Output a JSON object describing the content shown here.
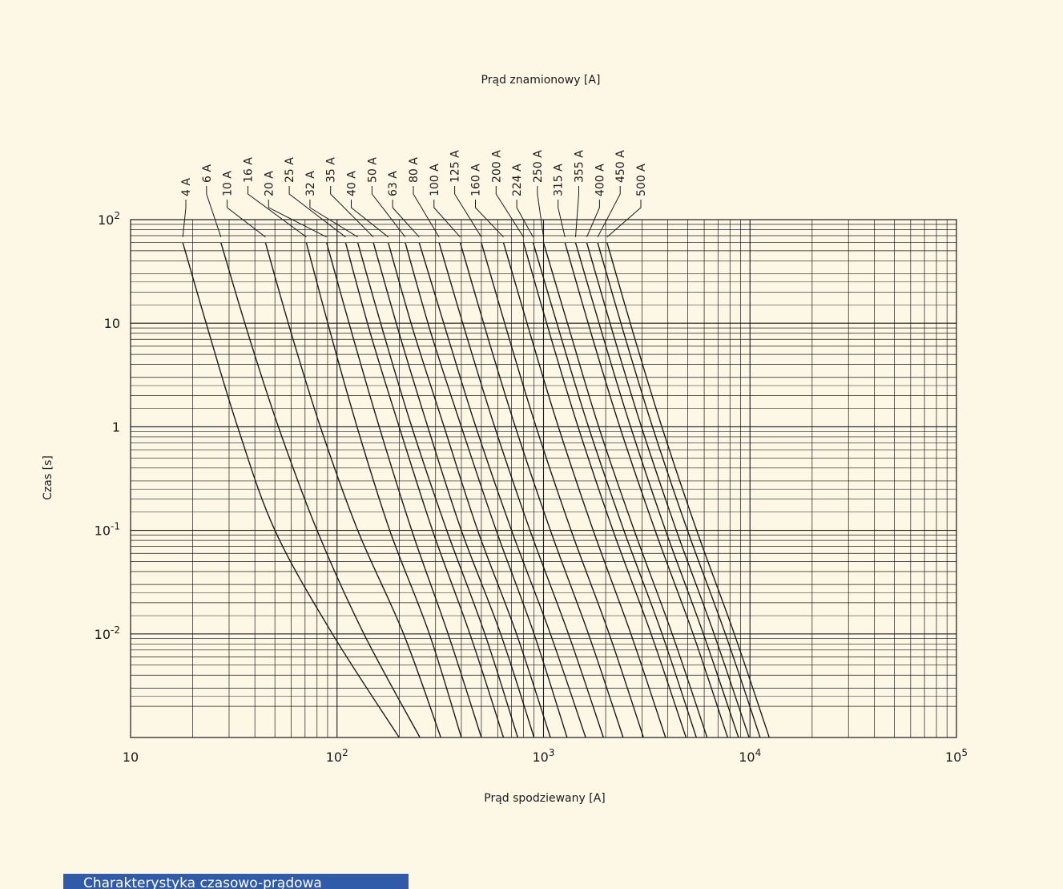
{
  "caption": "Charakterystyka czasowo-prądowa",
  "colors": {
    "background": "#fdf8e6",
    "ink": "#1a1a1a",
    "caption_bar": "#2f5ba8",
    "caption_text": "#ffffff"
  },
  "chart_data": {
    "type": "line",
    "title": "Prąd znamionowy [A]",
    "xlabel": "Prąd spodziewany  [A]",
    "ylabel": "Czas [s]",
    "x_scale": "log",
    "y_scale": "log",
    "xlim": [
      10,
      100000
    ],
    "ylim": [
      0.001,
      100
    ],
    "grid": true,
    "x_ticks": [
      {
        "value": 10,
        "base": "10",
        "exp": ""
      },
      {
        "value": 100,
        "base": "10",
        "exp": "2"
      },
      {
        "value": 1000,
        "base": "10",
        "exp": "3"
      },
      {
        "value": 10000,
        "base": "10",
        "exp": "4"
      },
      {
        "value": 100000,
        "base": "10",
        "exp": "5"
      }
    ],
    "y_ticks": [
      {
        "value": 100,
        "base": "10",
        "exp": "2"
      },
      {
        "value": 10,
        "base": "10",
        "exp": ""
      },
      {
        "value": 1,
        "base": "1",
        "exp": ""
      },
      {
        "value": 0.1,
        "base": "10",
        "exp": "-1"
      },
      {
        "value": 0.01,
        "base": "10",
        "exp": "-2"
      }
    ],
    "series": [
      {
        "name": "4 A",
        "points": [
          [
            17.9,
            60
          ],
          [
            24,
            8
          ],
          [
            33,
            1
          ],
          [
            50,
            0.1
          ],
          [
            95,
            0.01
          ],
          [
            200,
            0.001
          ]
        ]
      },
      {
        "name": "6 A",
        "points": [
          [
            27.4,
            60
          ],
          [
            37,
            8
          ],
          [
            52,
            1
          ],
          [
            80,
            0.1
          ],
          [
            135,
            0.01
          ],
          [
            252,
            0.001
          ]
        ]
      },
      {
        "name": "10 A",
        "points": [
          [
            45,
            60
          ],
          [
            60,
            8
          ],
          [
            83,
            1
          ],
          [
            126,
            0.1
          ],
          [
            210,
            0.01
          ],
          [
            318,
            0.001
          ]
        ]
      },
      {
        "name": "16 A",
        "points": [
          [
            71,
            60
          ],
          [
            93,
            8
          ],
          [
            125,
            1
          ],
          [
            180,
            0.1
          ],
          [
            280,
            0.01
          ],
          [
            400,
            0.001
          ]
        ]
      },
      {
        "name": "20 A",
        "points": [
          [
            89,
            60
          ],
          [
            118,
            8
          ],
          [
            160,
            1
          ],
          [
            230,
            0.1
          ],
          [
            345,
            0.01
          ],
          [
            500,
            0.001
          ]
        ]
      },
      {
        "name": "25 A",
        "points": [
          [
            110,
            60
          ],
          [
            145,
            8
          ],
          [
            200,
            1
          ],
          [
            290,
            0.1
          ],
          [
            440,
            0.01
          ],
          [
            640,
            0.001
          ]
        ]
      },
      {
        "name": "32 A",
        "points": [
          [
            126,
            60
          ],
          [
            168,
            8
          ],
          [
            230,
            1
          ],
          [
            340,
            0.1
          ],
          [
            520,
            0.01
          ],
          [
            750,
            0.001
          ]
        ]
      },
      {
        "name": "35 A",
        "points": [
          [
            150,
            60
          ],
          [
            200,
            8
          ],
          [
            275,
            1
          ],
          [
            400,
            0.1
          ],
          [
            620,
            0.01
          ],
          [
            900,
            0.001
          ]
        ]
      },
      {
        "name": "40 A",
        "points": [
          [
            177,
            60
          ],
          [
            236,
            8
          ],
          [
            330,
            1
          ],
          [
            480,
            0.1
          ],
          [
            740,
            0.01
          ],
          [
            1080,
            0.001
          ]
        ]
      },
      {
        "name": "50 A",
        "points": [
          [
            214,
            60
          ],
          [
            285,
            8
          ],
          [
            400,
            1
          ],
          [
            590,
            0.1
          ],
          [
            900,
            0.01
          ],
          [
            1300,
            0.001
          ]
        ]
      },
      {
        "name": "63 A",
        "points": [
          [
            250,
            60
          ],
          [
            340,
            8
          ],
          [
            470,
            1
          ],
          [
            700,
            0.1
          ],
          [
            1080,
            0.01
          ],
          [
            1600,
            0.001
          ]
        ]
      },
      {
        "name": "80 A",
        "points": [
          [
            312,
            60
          ],
          [
            420,
            8
          ],
          [
            580,
            1
          ],
          [
            860,
            0.1
          ],
          [
            1320,
            0.01
          ],
          [
            1950,
            0.001
          ]
        ]
      },
      {
        "name": "100 A",
        "points": [
          [
            395,
            60
          ],
          [
            530,
            8
          ],
          [
            730,
            1
          ],
          [
            1080,
            0.1
          ],
          [
            1650,
            0.01
          ],
          [
            2430,
            0.001
          ]
        ]
      },
      {
        "name": "125 A",
        "points": [
          [
            500,
            60
          ],
          [
            670,
            8
          ],
          [
            920,
            1
          ],
          [
            1360,
            0.1
          ],
          [
            2080,
            0.01
          ],
          [
            3050,
            0.001
          ]
        ]
      },
      {
        "name": "160 A",
        "points": [
          [
            640,
            60
          ],
          [
            860,
            8
          ],
          [
            1180,
            1
          ],
          [
            1740,
            0.1
          ],
          [
            2650,
            0.01
          ],
          [
            3900,
            0.001
          ]
        ]
      },
      {
        "name": "200 A",
        "points": [
          [
            800,
            60
          ],
          [
            1070,
            8
          ],
          [
            1470,
            1
          ],
          [
            2170,
            0.1
          ],
          [
            3320,
            0.01
          ],
          [
            4900,
            0.001
          ]
        ]
      },
      {
        "name": "224 A",
        "points": [
          [
            890,
            60
          ],
          [
            1200,
            8
          ],
          [
            1650,
            1
          ],
          [
            2450,
            0.1
          ],
          [
            3750,
            0.01
          ],
          [
            5500,
            0.001
          ]
        ]
      },
      {
        "name": "250 A",
        "points": [
          [
            1000,
            60
          ],
          [
            1350,
            8
          ],
          [
            1850,
            1
          ],
          [
            2750,
            0.1
          ],
          [
            4200,
            0.01
          ],
          [
            6200,
            0.001
          ]
        ]
      },
      {
        "name": "315 A",
        "points": [
          [
            1270,
            60
          ],
          [
            1700,
            8
          ],
          [
            2340,
            1
          ],
          [
            3470,
            0.1
          ],
          [
            5300,
            0.01
          ],
          [
            7800,
            0.001
          ]
        ]
      },
      {
        "name": "355 A",
        "points": [
          [
            1430,
            60
          ],
          [
            1920,
            8
          ],
          [
            2640,
            1
          ],
          [
            3900,
            0.1
          ],
          [
            5950,
            0.01
          ],
          [
            8800,
            0.001
          ]
        ]
      },
      {
        "name": "400 A",
        "points": [
          [
            1620,
            60
          ],
          [
            2170,
            8
          ],
          [
            2980,
            1
          ],
          [
            4400,
            0.1
          ],
          [
            6700,
            0.01
          ],
          [
            9900,
            0.001
          ]
        ]
      },
      {
        "name": "450 A",
        "points": [
          [
            1830,
            60
          ],
          [
            2450,
            8
          ],
          [
            3370,
            1
          ],
          [
            4980,
            0.1
          ],
          [
            7600,
            0.01
          ],
          [
            11200,
            0.001
          ]
        ]
      },
      {
        "name": "500 A",
        "points": [
          [
            2030,
            60
          ],
          [
            2720,
            8
          ],
          [
            3740,
            1
          ],
          [
            5520,
            0.1
          ],
          [
            8400,
            0.01
          ],
          [
            12400,
            0.001
          ]
        ]
      }
    ]
  }
}
